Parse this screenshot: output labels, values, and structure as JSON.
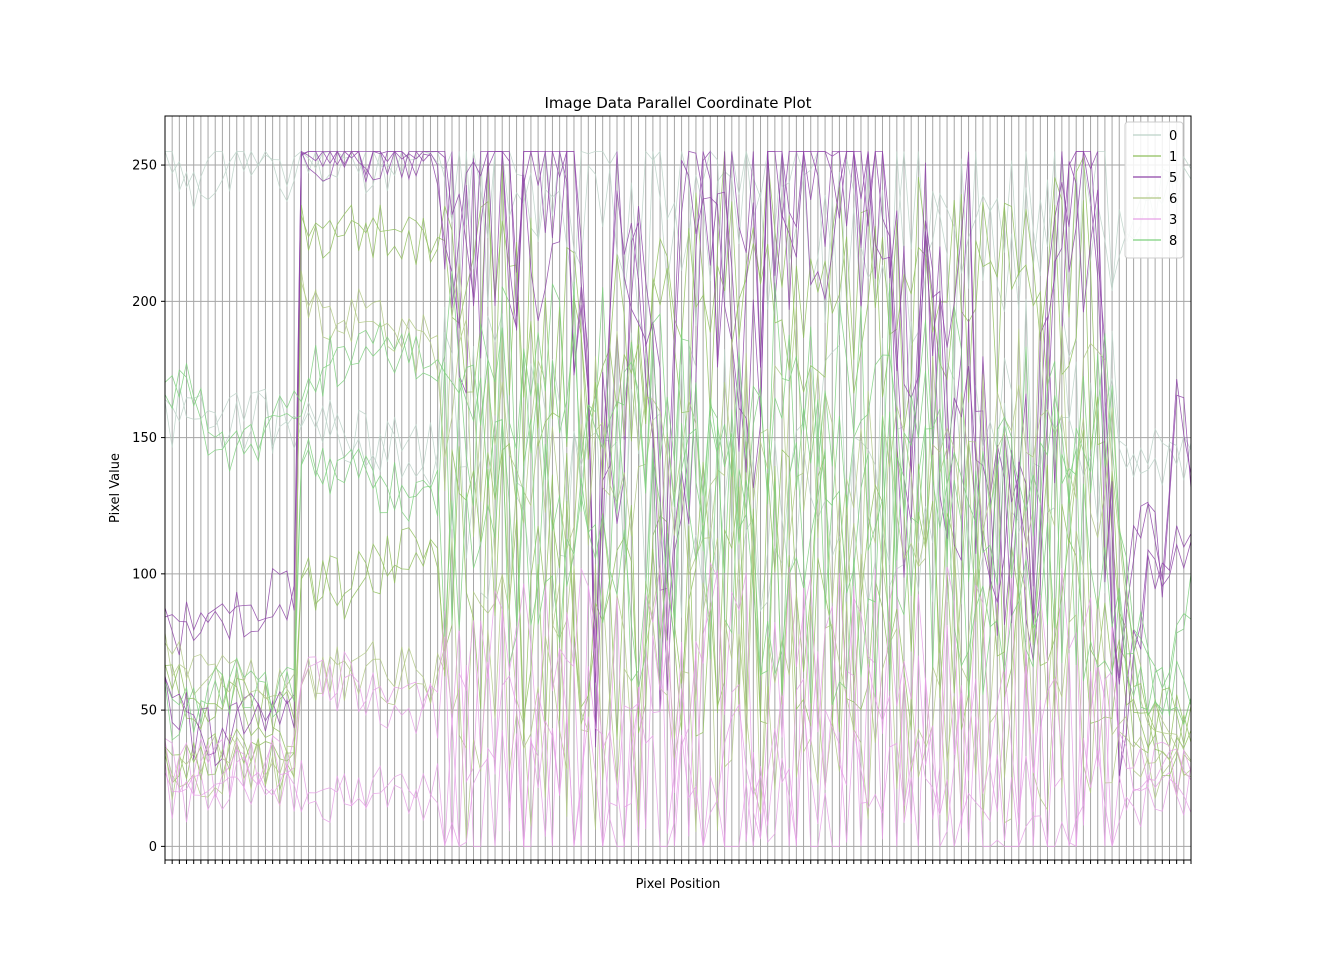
{
  "chart_data": {
    "type": "line",
    "title": "Image Data Parallel Coordinate Plot",
    "xlabel": "Pixel Position",
    "ylabel": "Pixel Value",
    "ylim": [
      -5,
      268
    ],
    "yticks": [
      0,
      50,
      100,
      150,
      200,
      250
    ],
    "num_positions": 144,
    "grid": true,
    "legend_placement": "top-right",
    "series": [
      {
        "name": "0",
        "color": "#bcd2c8",
        "anchors": [
          [
            0,
            255
          ],
          [
            3,
            244
          ],
          [
            6,
            241
          ],
          [
            10,
            255
          ],
          [
            14,
            250
          ],
          [
            18,
            248
          ],
          [
            20,
            255
          ],
          [
            22,
            255
          ],
          [
            25,
            253
          ],
          [
            30,
            250
          ],
          [
            35,
            255
          ],
          [
            45,
            252
          ],
          [
            55,
            245
          ],
          [
            65,
            240
          ],
          [
            80,
            235
          ],
          [
            95,
            232
          ],
          [
            110,
            226
          ],
          [
            125,
            225
          ],
          [
            135,
            228
          ],
          [
            143,
            250
          ]
        ],
        "low_anchors": [
          [
            0,
            158
          ],
          [
            10,
            157
          ],
          [
            17,
            155
          ],
          [
            20,
            157
          ],
          [
            25,
            150
          ],
          [
            35,
            145
          ],
          [
            50,
            140
          ],
          [
            65,
            138
          ],
          [
            80,
            135
          ],
          [
            100,
            140
          ],
          [
            115,
            145
          ],
          [
            130,
            148
          ],
          [
            143,
            140
          ]
        ]
      },
      {
        "name": "1",
        "color": "#8fbf5c",
        "anchors": [
          [
            0,
            30
          ],
          [
            5,
            32
          ],
          [
            10,
            35
          ],
          [
            15,
            32
          ],
          [
            18,
            30
          ],
          [
            19,
            225
          ],
          [
            22,
            227
          ],
          [
            28,
            227
          ],
          [
            35,
            225
          ],
          [
            45,
            205
          ],
          [
            55,
            175
          ],
          [
            65,
            180
          ],
          [
            75,
            210
          ],
          [
            85,
            200
          ],
          [
            100,
            205
          ],
          [
            110,
            210
          ],
          [
            120,
            215
          ],
          [
            128,
            220
          ],
          [
            131,
            120
          ],
          [
            135,
            60
          ],
          [
            139,
            35
          ],
          [
            143,
            45
          ]
        ],
        "low_anchors": [
          [
            0,
            60
          ],
          [
            5,
            55
          ],
          [
            10,
            52
          ],
          [
            18,
            45
          ],
          [
            19,
            100
          ],
          [
            25,
            95
          ],
          [
            35,
            110
          ],
          [
            45,
            95
          ],
          [
            60,
            90
          ],
          [
            80,
            95
          ],
          [
            100,
            92
          ],
          [
            120,
            98
          ],
          [
            130,
            100
          ],
          [
            135,
            45
          ],
          [
            143,
            48
          ]
        ]
      },
      {
        "name": "5",
        "color": "#8e44a8",
        "anchors": [
          [
            0,
            80
          ],
          [
            3,
            82
          ],
          [
            6,
            80
          ],
          [
            10,
            85
          ],
          [
            14,
            90
          ],
          [
            17,
            90
          ],
          [
            18,
            92
          ],
          [
            19,
            255
          ],
          [
            25,
            255
          ],
          [
            30,
            255
          ],
          [
            37,
            255
          ],
          [
            38,
            252
          ],
          [
            40,
            215
          ],
          [
            43,
            245
          ],
          [
            47,
            250
          ],
          [
            50,
            225
          ],
          [
            53,
            250
          ],
          [
            57,
            255
          ],
          [
            58,
            235
          ],
          [
            60,
            70
          ],
          [
            63,
            255
          ],
          [
            66,
            240
          ],
          [
            69,
            80
          ],
          [
            72,
            255
          ],
          [
            76,
            250
          ],
          [
            79,
            200
          ],
          [
            81,
            170
          ],
          [
            83,
            150
          ],
          [
            84,
            250
          ],
          [
            88,
            255
          ],
          [
            92,
            240
          ],
          [
            95,
            250
          ],
          [
            99,
            255
          ],
          [
            101,
            230
          ],
          [
            103,
            120
          ],
          [
            106,
            200
          ],
          [
            109,
            140
          ],
          [
            112,
            220
          ],
          [
            115,
            100
          ],
          [
            118,
            130
          ],
          [
            121,
            90
          ],
          [
            124,
            220
          ],
          [
            126,
            250
          ],
          [
            128,
            255
          ],
          [
            130,
            230
          ],
          [
            131,
            150
          ],
          [
            133,
            60
          ],
          [
            135,
            110
          ],
          [
            137,
            130
          ],
          [
            139,
            95
          ],
          [
            141,
            170
          ],
          [
            143,
            140
          ]
        ],
        "low_anchors": [
          [
            0,
            55
          ],
          [
            4,
            42
          ],
          [
            8,
            38
          ],
          [
            13,
            50
          ],
          [
            18,
            55
          ],
          [
            19,
            255
          ],
          [
            37,
            255
          ],
          [
            39,
            230
          ],
          [
            44,
            210
          ],
          [
            50,
            240
          ],
          [
            56,
            250
          ],
          [
            60,
            100
          ],
          [
            66,
            225
          ],
          [
            70,
            110
          ],
          [
            76,
            235
          ],
          [
            81,
            190
          ],
          [
            84,
            240
          ],
          [
            92,
            250
          ],
          [
            99,
            250
          ],
          [
            103,
            180
          ],
          [
            108,
            170
          ],
          [
            114,
            140
          ],
          [
            121,
            110
          ],
          [
            126,
            235
          ],
          [
            130,
            210
          ],
          [
            133,
            35
          ],
          [
            137,
            100
          ],
          [
            143,
            110
          ]
        ]
      },
      {
        "name": "6",
        "color": "#b0c884",
        "anchors": [
          [
            0,
            70
          ],
          [
            5,
            65
          ],
          [
            10,
            60
          ],
          [
            15,
            58
          ],
          [
            18,
            60
          ],
          [
            19,
            200
          ],
          [
            25,
            195
          ],
          [
            32,
            190
          ],
          [
            38,
            180
          ],
          [
            45,
            150
          ],
          [
            55,
            120
          ],
          [
            65,
            140
          ],
          [
            75,
            135
          ],
          [
            85,
            145
          ],
          [
            95,
            140
          ],
          [
            105,
            130
          ],
          [
            115,
            135
          ],
          [
            125,
            160
          ],
          [
            131,
            150
          ],
          [
            135,
            70
          ],
          [
            139,
            40
          ],
          [
            143,
            36
          ]
        ],
        "low_anchors": [
          [
            0,
            28
          ],
          [
            10,
            30
          ],
          [
            18,
            25
          ],
          [
            19,
            60
          ],
          [
            30,
            65
          ],
          [
            45,
            55
          ],
          [
            60,
            60
          ],
          [
            80,
            58
          ],
          [
            100,
            62
          ],
          [
            120,
            60
          ],
          [
            131,
            65
          ],
          [
            135,
            30
          ],
          [
            143,
            28
          ]
        ]
      },
      {
        "name": "3",
        "color": "#e6a0e6",
        "anchors": [
          [
            0,
            22
          ],
          [
            5,
            20
          ],
          [
            10,
            22
          ],
          [
            18,
            20
          ],
          [
            19,
            20
          ],
          [
            25,
            21
          ],
          [
            35,
            20
          ],
          [
            45,
            18
          ],
          [
            60,
            20
          ],
          [
            75,
            21
          ],
          [
            90,
            19
          ],
          [
            105,
            20
          ],
          [
            120,
            21
          ],
          [
            131,
            20
          ],
          [
            135,
            18
          ],
          [
            143,
            18
          ]
        ],
        "low_anchors": [
          [
            0,
            30
          ],
          [
            10,
            28
          ],
          [
            18,
            30
          ],
          [
            19,
            60
          ],
          [
            25,
            60
          ],
          [
            35,
            50
          ],
          [
            50,
            45
          ],
          [
            65,
            52
          ],
          [
            80,
            48
          ],
          [
            95,
            50
          ],
          [
            110,
            52
          ],
          [
            125,
            50
          ],
          [
            131,
            48
          ],
          [
            135,
            28
          ],
          [
            143,
            26
          ]
        ]
      },
      {
        "name": "8",
        "color": "#7ed07e",
        "anchors": [
          [
            0,
            160
          ],
          [
            3,
            175
          ],
          [
            6,
            155
          ],
          [
            9,
            140
          ],
          [
            12,
            150
          ],
          [
            15,
            155
          ],
          [
            18,
            165
          ],
          [
            19,
            170
          ],
          [
            25,
            180
          ],
          [
            32,
            185
          ],
          [
            38,
            180
          ],
          [
            45,
            170
          ],
          [
            55,
            160
          ],
          [
            65,
            165
          ],
          [
            75,
            150
          ],
          [
            85,
            160
          ],
          [
            95,
            155
          ],
          [
            105,
            150
          ],
          [
            115,
            140
          ],
          [
            125,
            155
          ],
          [
            131,
            160
          ],
          [
            135,
            80
          ],
          [
            139,
            60
          ],
          [
            143,
            90
          ]
        ],
        "low_anchors": [
          [
            0,
            50
          ],
          [
            6,
            55
          ],
          [
            12,
            60
          ],
          [
            18,
            55
          ],
          [
            19,
            140
          ],
          [
            25,
            135
          ],
          [
            35,
            130
          ],
          [
            45,
            120
          ],
          [
            60,
            115
          ],
          [
            75,
            110
          ],
          [
            90,
            105
          ],
          [
            105,
            110
          ],
          [
            120,
            108
          ],
          [
            131,
            110
          ],
          [
            135,
            60
          ],
          [
            143,
            55
          ]
        ]
      }
    ]
  }
}
